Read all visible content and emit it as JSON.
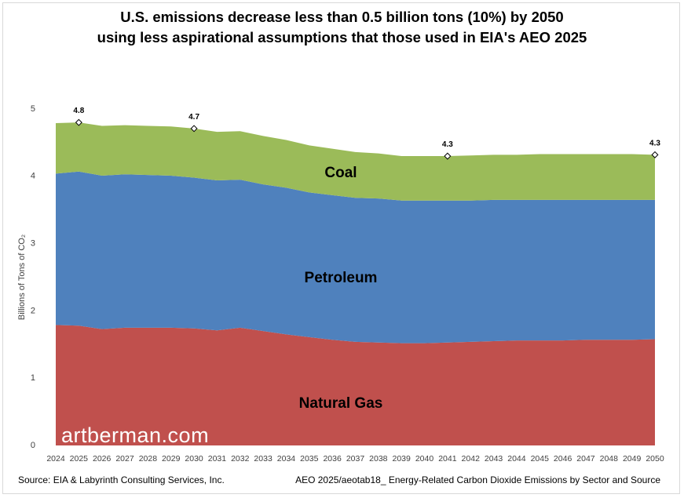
{
  "title_line1": "U.S. emissions decrease less than 0.5 billion tons (10%) by 2050",
  "title_line2": "using less aspirational assumptions that those used in EIA's AEO 2025",
  "watermark": "artberman.com",
  "footer_left": "Source: EIA & Labyrinth Consulting Services, Inc.",
  "footer_right": "AEO 2025/aeotab18_ Energy-Related Carbon Dioxide Emissions by Sector and Source",
  "chart_data": {
    "type": "area",
    "stacked": true,
    "ylabel": "Billions of Tons of CO₂",
    "xlabel": "",
    "ylim": [
      0,
      5
    ],
    "yticks": [
      0,
      1,
      2,
      3,
      4,
      5
    ],
    "grid": false,
    "x": [
      2024,
      2025,
      2026,
      2027,
      2028,
      2029,
      2030,
      2031,
      2032,
      2033,
      2034,
      2035,
      2036,
      2037,
      2038,
      2039,
      2040,
      2041,
      2042,
      2043,
      2044,
      2045,
      2046,
      2047,
      2048,
      2049,
      2050
    ],
    "series": [
      {
        "name": "Natural Gas",
        "color": "#c0504d",
        "values": [
          1.79,
          1.78,
          1.73,
          1.75,
          1.75,
          1.75,
          1.74,
          1.71,
          1.75,
          1.7,
          1.65,
          1.61,
          1.57,
          1.54,
          1.53,
          1.52,
          1.52,
          1.53,
          1.54,
          1.55,
          1.56,
          1.56,
          1.56,
          1.57,
          1.57,
          1.57,
          1.58
        ]
      },
      {
        "name": "Petroleum",
        "color": "#4f81bd",
        "values": [
          2.25,
          2.29,
          2.28,
          2.28,
          2.27,
          2.26,
          2.24,
          2.23,
          2.2,
          2.18,
          2.18,
          2.15,
          2.15,
          2.14,
          2.14,
          2.12,
          2.12,
          2.11,
          2.1,
          2.1,
          2.09,
          2.09,
          2.09,
          2.08,
          2.08,
          2.08,
          2.07
        ]
      },
      {
        "name": "Coal",
        "color": "#9bbb59",
        "values": [
          0.75,
          0.73,
          0.74,
          0.73,
          0.73,
          0.73,
          0.73,
          0.72,
          0.72,
          0.72,
          0.71,
          0.7,
          0.69,
          0.68,
          0.67,
          0.66,
          0.66,
          0.66,
          0.67,
          0.67,
          0.67,
          0.68,
          0.68,
          0.68,
          0.68,
          0.68,
          0.67
        ]
      }
    ],
    "annotations": [
      {
        "x": 2025,
        "y": 4.8,
        "label": "4.8"
      },
      {
        "x": 2030,
        "y": 4.71,
        "label": "4.7"
      },
      {
        "x": 2041,
        "y": 4.3,
        "label": "4.3"
      },
      {
        "x": 2050,
        "y": 4.32,
        "label": "4.3"
      }
    ],
    "in_chart_labels": [
      "Coal",
      "Petroleum",
      "Natural Gas"
    ]
  }
}
